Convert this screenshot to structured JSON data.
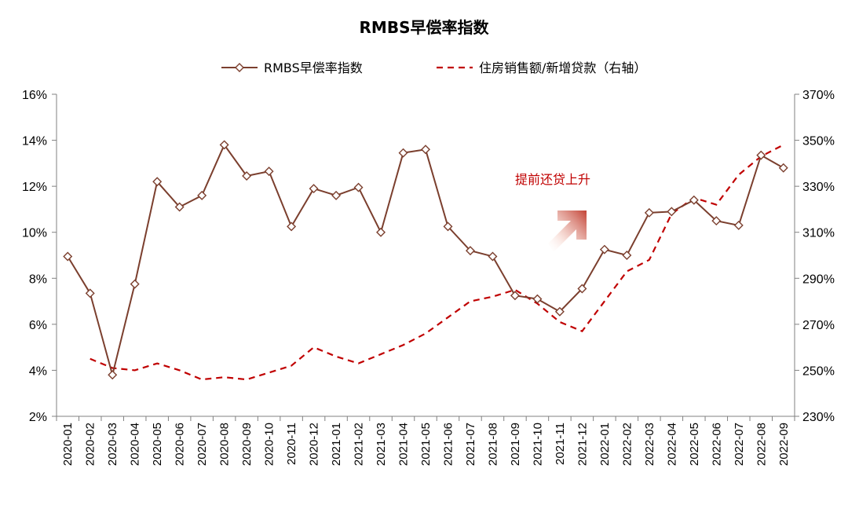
{
  "chart_data": {
    "type": "line",
    "title": "RMBS早偿率指数",
    "x": [
      "2020-01",
      "2020-02",
      "2020-03",
      "2020-04",
      "2020-05",
      "2020-06",
      "2020-07",
      "2020-08",
      "2020-09",
      "2020-10",
      "2020-11",
      "2020-12",
      "2021-01",
      "2021-02",
      "2021-03",
      "2021-04",
      "2021-05",
      "2021-06",
      "2021-07",
      "2021-08",
      "2021-09",
      "2021-10",
      "2021-11",
      "2021-12",
      "2022-01",
      "2022-02",
      "2022-03",
      "2022-04",
      "2022-05",
      "2022-06",
      "2022-07",
      "2022-08",
      "2022-09"
    ],
    "y_left": {
      "range": [
        2,
        16
      ],
      "ticks": [
        2,
        4,
        6,
        8,
        10,
        12,
        14,
        16
      ],
      "tick_labels": [
        "2%",
        "4%",
        "6%",
        "8%",
        "10%",
        "12%",
        "14%",
        "16%"
      ]
    },
    "y_right": {
      "range": [
        230,
        370
      ],
      "ticks": [
        230,
        250,
        270,
        290,
        310,
        330,
        350,
        370
      ],
      "tick_labels": [
        "230%",
        "250%",
        "270%",
        "290%",
        "310%",
        "330%",
        "350%",
        "370%"
      ]
    },
    "series": [
      {
        "name": "RMBS早偿率指数",
        "axis": "left",
        "style": "solid-diamond",
        "color": "#7b3f2e",
        "values": [
          8.95,
          7.35,
          3.8,
          7.75,
          12.2,
          11.1,
          11.6,
          13.8,
          12.45,
          12.65,
          10.25,
          11.9,
          11.6,
          11.95,
          10.0,
          13.45,
          13.6,
          10.25,
          9.2,
          8.95,
          7.25,
          7.1,
          6.55,
          7.55,
          9.25,
          9.0,
          10.85,
          10.9,
          11.4,
          10.5,
          10.3,
          13.35,
          12.8
        ]
      },
      {
        "name": "住房销售额/新增贷款（右轴）",
        "axis": "right",
        "style": "dashed",
        "color": "#c00000",
        "values": [
          null,
          255,
          251,
          250,
          253,
          250,
          246,
          247,
          246,
          249,
          252,
          260,
          256,
          253,
          257,
          261,
          266,
          273,
          280,
          282,
          285,
          279,
          271,
          267,
          280,
          293,
          298,
          318,
          325,
          322,
          335,
          343,
          348
        ]
      }
    ],
    "annotation": {
      "text": "提前还贷上升"
    },
    "grid": false,
    "legend": "top-center"
  }
}
